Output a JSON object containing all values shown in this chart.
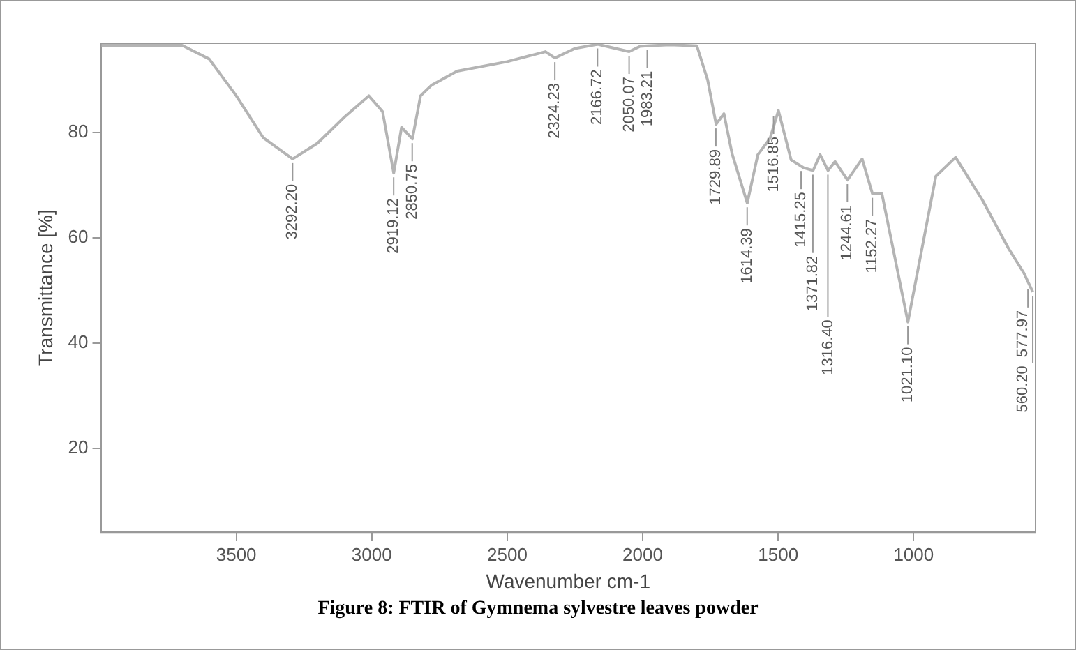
{
  "chart_data": {
    "type": "line",
    "title": "Figure 8: FTIR of Gymnema sylvestre leaves powder",
    "xlabel": "Wavenumber cm-1",
    "ylabel": "Transmittance [%]",
    "xlim": [
      4000,
      550
    ],
    "xticks": [
      3500,
      3000,
      2500,
      2000,
      1500,
      1000
    ],
    "ylim": [
      4,
      97
    ],
    "yticks": [
      20,
      40,
      60,
      80
    ],
    "grid": false,
    "legend": false,
    "marker": "none",
    "line_style": "solid",
    "series": [
      {
        "color": "#b4b4b4",
        "x": [
          4000,
          3700,
          3600,
          3500,
          3400,
          3292,
          3200,
          3100,
          3011,
          2960,
          2919,
          2890,
          2850,
          2820,
          2780,
          2685,
          2500,
          2359,
          2324,
          2250,
          2166,
          2100,
          2050,
          2010,
          1983,
          1900,
          1800,
          1760,
          1729,
          1700,
          1670,
          1614,
          1575,
          1530,
          1499,
          1452,
          1405,
          1371,
          1345,
          1316,
          1290,
          1244,
          1190,
          1152,
          1117,
          1021,
          918,
          845,
          745,
          650,
          593,
          560.2
        ],
        "values": [
          96.6,
          96.6,
          94,
          87,
          79,
          75,
          78,
          83,
          87,
          84,
          72.3,
          81,
          78.8,
          87,
          89,
          91.7,
          93.5,
          95.4,
          94.2,
          96,
          96.8,
          96,
          95.4,
          96.4,
          96.5,
          96.7,
          96.5,
          90,
          81.6,
          83.6,
          76,
          66.6,
          75.8,
          78.9,
          84.2,
          74.8,
          73.3,
          72.8,
          75.8,
          72.8,
          74.5,
          71,
          75,
          68.4,
          68.4,
          44,
          71.7,
          75.3,
          67.1,
          58,
          53.3,
          49.7
        ]
      }
    ],
    "annotations": [
      {
        "text": "3292.20",
        "x": 3292.2,
        "y": 75
      },
      {
        "text": "2919.12",
        "x": 2919.12,
        "y": 72.3
      },
      {
        "text": "2850.75",
        "x": 2850.75,
        "y": 78.8
      },
      {
        "text": "2324.23",
        "x": 2324.23,
        "y": 94.2
      },
      {
        "text": "2166.72",
        "x": 2166.72,
        "y": 96.8
      },
      {
        "text": "2050.07",
        "x": 2050.07,
        "y": 95.4
      },
      {
        "text": "1983.21",
        "x": 1983.21,
        "y": 96.5
      },
      {
        "text": "1729.89",
        "x": 1729.89,
        "y": 81.6
      },
      {
        "text": "1614.39",
        "x": 1614.39,
        "y": 66.6
      },
      {
        "text": "1516.85",
        "x": 1516.85,
        "y": 84
      },
      {
        "text": "1415.25",
        "x": 1415.25,
        "y": 73.5
      },
      {
        "text": "1371.82",
        "x": 1371.82,
        "y": 72.8
      },
      {
        "text": "1316.40",
        "x": 1316.4,
        "y": 72.8
      },
      {
        "text": "1244.61",
        "x": 1244.61,
        "y": 71
      },
      {
        "text": "1152.27",
        "x": 1152.27,
        "y": 68.4
      },
      {
        "text": "1021.10",
        "x": 1021.1,
        "y": 44
      },
      {
        "text": "577.97",
        "x": 577.97,
        "y": 51
      },
      {
        "text": "560.20",
        "x": 560.2,
        "y": 49.7
      }
    ]
  }
}
